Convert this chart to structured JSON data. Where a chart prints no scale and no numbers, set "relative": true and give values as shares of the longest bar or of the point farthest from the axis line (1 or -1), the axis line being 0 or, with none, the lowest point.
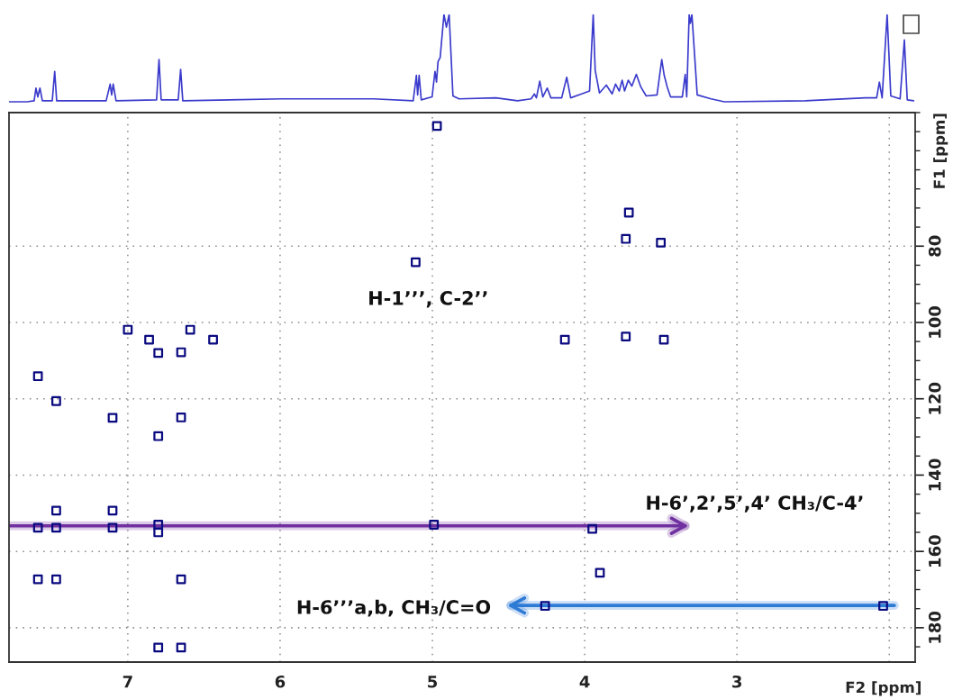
{
  "chart_data": [
    {
      "type": "line",
      "relative": true,
      "color": "#3a3acc",
      "xlim": [
        7.78,
        1.83
      ],
      "x": [
        7.78,
        7.662,
        7.615,
        7.603,
        7.591,
        7.577,
        7.561,
        7.496,
        7.48,
        7.467,
        7.142,
        7.116,
        7.106,
        7.096,
        7.077,
        6.811,
        6.795,
        6.781,
        6.669,
        6.653,
        6.639,
        5.989,
        5.387,
        5.126,
        5.105,
        5.097,
        5.087,
        5.073,
        5.002,
        4.983,
        4.973,
        4.963,
        4.949,
        4.924,
        4.908,
        4.89,
        4.865,
        4.825,
        4.583,
        4.441,
        4.352,
        4.33,
        4.317,
        4.295,
        4.275,
        4.246,
        4.222,
        4.151,
        4.118,
        4.092,
        4.02,
        3.968,
        3.944,
        3.931,
        3.903,
        3.858,
        3.82,
        3.797,
        3.773,
        3.754,
        3.738,
        3.714,
        3.69,
        3.661,
        3.631,
        3.596,
        3.525,
        3.494,
        3.478,
        3.458,
        3.436,
        3.359,
        3.34,
        3.33,
        3.314,
        3.306,
        3.296,
        3.261,
        3.17,
        3.083,
        2.551,
        2.158,
        2.083,
        2.065,
        2.047,
        2.014,
        1.99,
        1.929,
        1.901,
        1.882,
        1.84
      ],
      "values": [
        0.11,
        0.11,
        0.12,
        0.25,
        0.16,
        0.25,
        0.12,
        0.12,
        0.42,
        0.12,
        0.12,
        0.29,
        0.18,
        0.29,
        0.12,
        0.13,
        0.54,
        0.13,
        0.13,
        0.44,
        0.12,
        0.14,
        0.14,
        0.12,
        0.38,
        0.18,
        0.38,
        0.13,
        0.16,
        0.42,
        0.31,
        0.52,
        0.56,
        1.0,
        0.87,
        1.0,
        0.17,
        0.14,
        0.15,
        0.12,
        0.14,
        0.19,
        0.15,
        0.32,
        0.16,
        0.25,
        0.15,
        0.15,
        0.36,
        0.15,
        0.19,
        0.22,
        1.0,
        0.43,
        0.2,
        0.28,
        0.19,
        0.29,
        0.22,
        0.33,
        0.22,
        0.33,
        0.27,
        0.39,
        0.26,
        0.17,
        0.18,
        0.54,
        0.38,
        0.26,
        0.16,
        0.16,
        0.39,
        0.16,
        1.0,
        0.91,
        1.0,
        0.18,
        0.14,
        0.11,
        0.12,
        0.15,
        0.15,
        0.31,
        0.15,
        1.0,
        0.17,
        0.14,
        0.74,
        0.13,
        0.12
      ]
    },
    {
      "type": "scatter",
      "color": "#0a0a80",
      "marker": "square",
      "x": [
        4.97,
        5.11,
        7.0,
        6.59,
        6.86,
        6.44,
        6.8,
        6.65,
        7.59,
        7.47,
        7.1,
        6.65,
        6.8,
        3.71,
        3.73,
        3.5,
        4.13,
        3.73,
        3.48,
        7.47,
        7.1,
        7.59,
        7.47,
        7.1,
        6.8,
        6.8,
        4.99,
        7.59,
        7.47,
        6.65,
        6.8,
        6.65,
        3.95,
        3.9,
        4.26,
        2.04
      ],
      "values": [
        48.5,
        84.2,
        101.9,
        101.9,
        104.5,
        104.5,
        108.0,
        107.8,
        114.1,
        120.6,
        125.0,
        124.9,
        129.8,
        71.2,
        78.1,
        79.1,
        104.5,
        103.7,
        104.5,
        149.3,
        149.3,
        153.8,
        153.8,
        153.8,
        153.0,
        155.0,
        153.0,
        167.3,
        167.3,
        167.3,
        185.2,
        185.2,
        154.1,
        165.6,
        174.3,
        174.3
      ],
      "xlim": [
        7.78,
        1.83
      ],
      "ylim": [
        189,
        45
      ],
      "xticks": [
        7,
        6,
        5,
        4,
        3,
        {
          "value": 2,
          "label": null
        }
      ],
      "yticks": [
        80,
        100,
        120,
        140,
        160,
        180
      ],
      "xlabel": "F2 [ppm]",
      "ylabel": "F1 [ppm]",
      "grid": true,
      "annotations": [
        {
          "text": "H-1’’’, C-2’’",
          "x": 5.11,
          "y": 84.2
        },
        "H-6’,2’,5’,4’ CH₃/C-4’",
        "H-6’’’a,b, CH₃/C=O"
      ]
    }
  ]
}
